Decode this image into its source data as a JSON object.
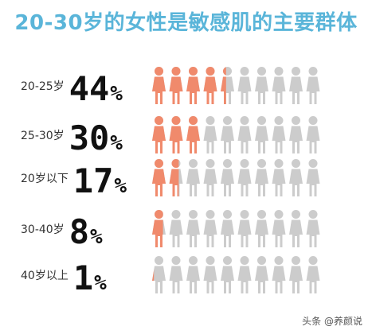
{
  "chart_data": {
    "type": "bar",
    "title": "20-30岁的女性是敏感肌的主要群体",
    "categories": [
      "20-25岁",
      "25-30岁",
      "20岁以下",
      "30-40岁",
      "40岁以上"
    ],
    "values": [
      44,
      30,
      17,
      8,
      1
    ],
    "value_labels": [
      "44",
      "30",
      "17",
      "8",
      "1"
    ],
    "unit": "%",
    "icons_per_row": 10,
    "ylim": [
      0,
      100
    ],
    "colors": {
      "filled": "#f08a6c",
      "empty": "#cccccc",
      "title": "#5ab5d9"
    }
  },
  "watermark": "头条 @养颜说"
}
